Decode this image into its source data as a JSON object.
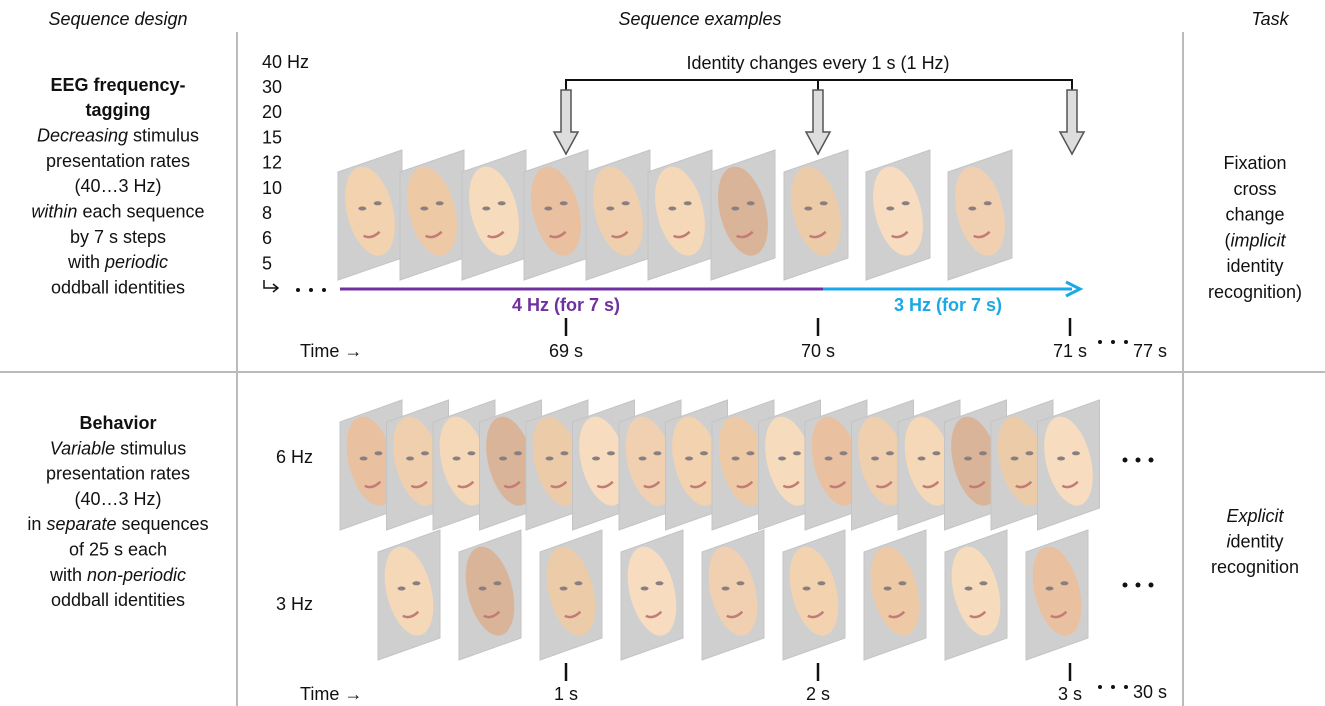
{
  "headers": {
    "design": "Sequence design",
    "examples": "Sequence examples",
    "task": "Task"
  },
  "eeg": {
    "design": {
      "title": [
        "EEG frequency-",
        "tagging"
      ],
      "lines": [
        [
          {
            "text": "Decreasing",
            "italic": true
          },
          {
            "text": " stimulus"
          }
        ],
        [
          {
            "text": "presentation rates"
          }
        ],
        [
          {
            "text": "(40…3 Hz)"
          }
        ],
        [
          {
            "text": "within",
            "italic": true
          },
          {
            "text": " each sequence"
          }
        ],
        [
          {
            "text": "by 7 s steps"
          }
        ],
        [
          {
            "text": "with "
          },
          {
            "text": "periodic",
            "italic": true
          }
        ],
        [
          {
            "text": "oddball identities"
          }
        ]
      ]
    },
    "frequencies": [
      "40 Hz",
      "30",
      "20",
      "15",
      "12",
      "10",
      "8",
      "6",
      "5"
    ],
    "identity_note": "Identity changes every 1 s (1 Hz)",
    "segments": [
      {
        "label": "4 Hz (for 7 s)",
        "color": "#7030a0"
      },
      {
        "label": "3 Hz (for 7 s)",
        "color": "#1aa8e6"
      }
    ],
    "time_label": "Time →",
    "times": [
      "69 s",
      "70 s",
      "71 s"
    ],
    "end_time": "77 s",
    "task": [
      [
        {
          "text": "Fixation"
        }
      ],
      [
        {
          "text": "cross"
        }
      ],
      [
        {
          "text": "change"
        }
      ],
      [
        {
          "text": "("
        },
        {
          "text": "implicit",
          "italic": true
        }
      ],
      [
        {
          "text": "identity"
        }
      ],
      [
        {
          "text": "recognition)"
        }
      ]
    ]
  },
  "behavior": {
    "design": {
      "title": [
        "Behavior"
      ],
      "lines": [
        [
          {
            "text": "Variable",
            "italic": true
          },
          {
            "text": " stimulus"
          }
        ],
        [
          {
            "text": "presentation rates"
          }
        ],
        [
          {
            "text": "(40…3 Hz)"
          }
        ],
        [
          {
            "text": "in "
          },
          {
            "text": "separate",
            "italic": true
          },
          {
            "text": " sequences"
          }
        ],
        [
          {
            "text": "of 25 s each"
          }
        ],
        [
          {
            "text": "with "
          },
          {
            "text": "non-periodic",
            "italic": true
          }
        ],
        [
          {
            "text": "oddball identities"
          }
        ]
      ]
    },
    "rates": [
      "6 Hz",
      "3 Hz"
    ],
    "time_label": "Time →",
    "times": [
      "1 s",
      "2 s",
      "3 s"
    ],
    "end_time": "30 s",
    "task": [
      [
        {
          "text": "Explicit",
          "italic": true
        }
      ],
      [
        {
          "text": "i",
          "italic": true
        },
        {
          "text": "dentity"
        }
      ],
      [
        {
          "text": "recognition"
        }
      ]
    ]
  }
}
